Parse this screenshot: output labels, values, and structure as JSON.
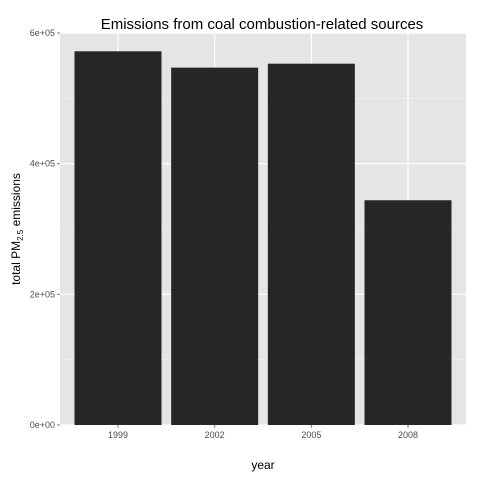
{
  "chart_data": {
    "type": "bar",
    "title": "Emissions from coal combustion-related sources",
    "xlabel": "year",
    "ylabel": {
      "prefix": "total PM",
      "subscript": "2.5",
      "suffix": " emissions"
    },
    "categories": [
      "1999",
      "2002",
      "2005",
      "2008"
    ],
    "values": [
      572000,
      547000,
      553000,
      344000
    ],
    "ylim": [
      0,
      600000
    ],
    "y_ticks": [
      0,
      200000,
      400000,
      600000
    ],
    "y_tick_labels": [
      "0e+00",
      "2e+05",
      "4e+05",
      "6e+05"
    ],
    "grid": true,
    "legend": "none",
    "colors": {
      "panel_background": "#e5e5e5",
      "grid_major": "#ffffff",
      "grid_minor": "#f2f2f2",
      "bar_fill": "#262626"
    }
  }
}
